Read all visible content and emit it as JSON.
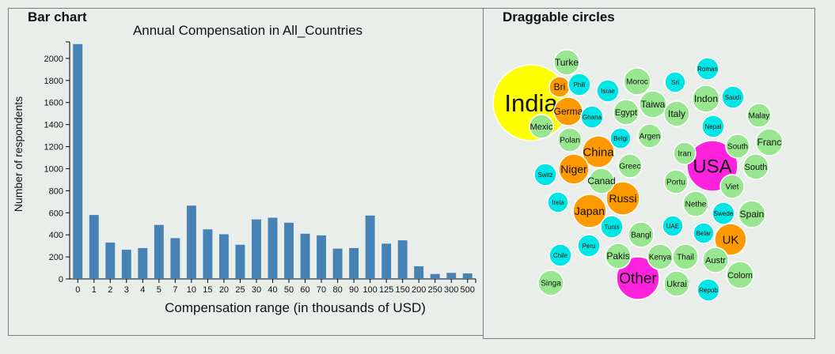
{
  "panels": {
    "left_title": "Bar chart",
    "right_title": "Draggable circles"
  },
  "chart_data": [
    {
      "type": "bar",
      "title": "Annual Compensation in All_Countries",
      "xlabel": "Compensation range (in thousands of USD)",
      "ylabel": "Number of respondents",
      "categories": [
        "0",
        "1",
        "2",
        "3",
        "4",
        "5",
        "7",
        "10",
        "15",
        "20",
        "25",
        "30",
        "40",
        "50",
        "60",
        "70",
        "80",
        "90",
        "100",
        "125",
        "150",
        "200",
        "250",
        "300",
        "500"
      ],
      "values": [
        2130,
        580,
        330,
        265,
        280,
        490,
        370,
        665,
        450,
        405,
        310,
        540,
        555,
        510,
        410,
        395,
        275,
        280,
        575,
        320,
        350,
        115,
        45,
        55,
        50
      ],
      "ylim": [
        0,
        2150
      ],
      "yticks": [
        0,
        200,
        400,
        600,
        800,
        1000,
        1200,
        1400,
        1600,
        1800,
        2000
      ],
      "bar_color": "#4682b4",
      "grid": false
    },
    {
      "type": "bubble",
      "title": "Draggable circles",
      "colors": {
        "large": "#ffff00",
        "usa_other": "#ff22dd",
        "medium": "#ff9900",
        "small": "#98e690",
        "tiny": "#00e5e5"
      },
      "nodes": [
        {
          "label": "India",
          "color": "#ffff00"
        },
        {
          "label": "USA",
          "color": "#ff22dd"
        },
        {
          "label": "Other",
          "color": "#ff22dd"
        },
        {
          "label": "Germa",
          "color": "#ff9900"
        },
        {
          "label": "China",
          "color": "#ff9900"
        },
        {
          "label": "Niger",
          "color": "#ff9900"
        },
        {
          "label": "Russi",
          "color": "#ff9900"
        },
        {
          "label": "Japan",
          "color": "#ff9900"
        },
        {
          "label": "UK",
          "color": "#ff9900"
        },
        {
          "label": "Bri",
          "color": "#ff9900"
        },
        {
          "label": "Turke",
          "color": "#98e690"
        },
        {
          "label": "Moroc",
          "color": "#98e690"
        },
        {
          "label": "Taiwa",
          "color": "#98e690"
        },
        {
          "label": "Egypt",
          "color": "#98e690"
        },
        {
          "label": "Italy",
          "color": "#98e690"
        },
        {
          "label": "Indon",
          "color": "#98e690"
        },
        {
          "label": "Malay",
          "color": "#98e690"
        },
        {
          "label": "Mexic",
          "color": "#98e690"
        },
        {
          "label": "Polan",
          "color": "#98e690"
        },
        {
          "label": "Argen",
          "color": "#98e690"
        },
        {
          "label": "Iran",
          "color": "#98e690"
        },
        {
          "label": "South",
          "color": "#98e690"
        },
        {
          "label": "Franc",
          "color": "#98e690"
        },
        {
          "label": "South",
          "color": "#98e690"
        },
        {
          "label": "Greec",
          "color": "#98e690"
        },
        {
          "label": "Canad",
          "color": "#98e690"
        },
        {
          "label": "Portu",
          "color": "#98e690"
        },
        {
          "label": "Viet",
          "color": "#98e690"
        },
        {
          "label": "Nethe",
          "color": "#98e690"
        },
        {
          "label": "Spain",
          "color": "#98e690"
        },
        {
          "label": "Bangl",
          "color": "#98e690"
        },
        {
          "label": "Pakis",
          "color": "#98e690"
        },
        {
          "label": "Thail",
          "color": "#98e690"
        },
        {
          "label": "Austr",
          "color": "#98e690"
        },
        {
          "label": "Colom",
          "color": "#98e690"
        },
        {
          "label": "Ukrai",
          "color": "#98e690"
        },
        {
          "label": "Singa",
          "color": "#98e690"
        },
        {
          "label": "Kenya",
          "color": "#98e690"
        },
        {
          "label": "Roman",
          "color": "#00e5e5"
        },
        {
          "label": "Phili",
          "color": "#00e5e5"
        },
        {
          "label": "Israe",
          "color": "#00e5e5"
        },
        {
          "label": "Sri",
          "color": "#00e5e5"
        },
        {
          "label": "Saudi",
          "color": "#00e5e5"
        },
        {
          "label": "Ghana",
          "color": "#00e5e5"
        },
        {
          "label": "Nepal",
          "color": "#00e5e5"
        },
        {
          "label": "Belgi",
          "color": "#00e5e5"
        },
        {
          "label": "Switz",
          "color": "#00e5e5"
        },
        {
          "label": "Irela",
          "color": "#00e5e5"
        },
        {
          "label": "Swede",
          "color": "#00e5e5"
        },
        {
          "label": "Tunis",
          "color": "#00e5e5"
        },
        {
          "label": "UAE",
          "color": "#00e5e5"
        },
        {
          "label": "Belar",
          "color": "#00e5e5"
        },
        {
          "label": "Peru",
          "color": "#00e5e5"
        },
        {
          "label": "Chile",
          "color": "#00e5e5"
        },
        {
          "label": "Repub",
          "color": "#00e5e5"
        }
      ]
    }
  ]
}
